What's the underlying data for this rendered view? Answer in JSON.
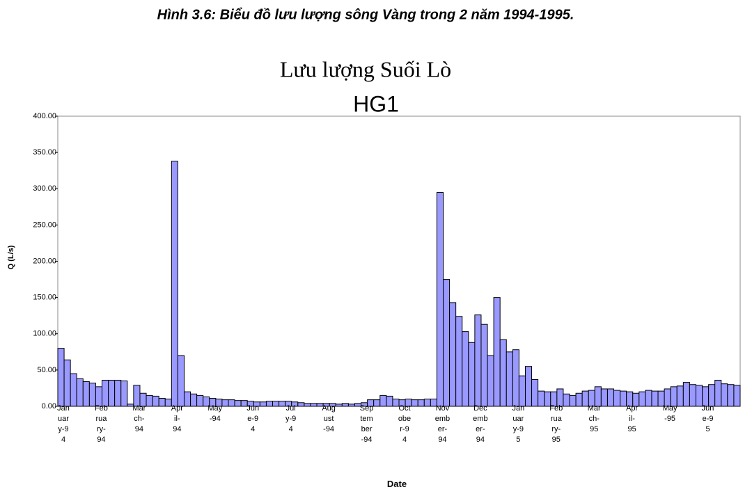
{
  "caption": "Hình 3.6: Biểu đồ lưu lượng sông Vàng trong 2 năm 1994-1995.",
  "chart_data": {
    "type": "bar",
    "title": "Lưu lượng Suối Lò",
    "subtitle": "HG1",
    "y_label": "Q (L/s)",
    "x_label": "Date",
    "color": "#9999ff",
    "edge_color": "#000000",
    "categories": [
      "January-94",
      "February-94",
      "March-94",
      "April-94",
      "May-94",
      "June-94",
      "July-94",
      "August-94",
      "September-94",
      "October-94",
      "November-94",
      "December-94",
      "January-95",
      "February-95",
      "March-95",
      "April-95",
      "May-95",
      "June-95"
    ],
    "values": [
      [
        80,
        64,
        45,
        38,
        34,
        32
      ],
      [
        27,
        36,
        36,
        36,
        35,
        3
      ],
      [
        29,
        18,
        15,
        14,
        11,
        10
      ],
      [
        338,
        70,
        20,
        17,
        15,
        13
      ],
      [
        11,
        10,
        9,
        9,
        8,
        8
      ],
      [
        7,
        6,
        6,
        7,
        7,
        7
      ],
      [
        7,
        6,
        5,
        4,
        4,
        4
      ],
      [
        4,
        4,
        3,
        4,
        3,
        4
      ],
      [
        5,
        9,
        9,
        15,
        14,
        10
      ],
      [
        9,
        10,
        9,
        9,
        10,
        10
      ],
      [
        295,
        175,
        143,
        124,
        103,
        88
      ],
      [
        126,
        113,
        70,
        150,
        92,
        75
      ],
      [
        78,
        42,
        55,
        37,
        21,
        20
      ],
      [
        20,
        24,
        17,
        15,
        18,
        21
      ],
      [
        22,
        27,
        24,
        24,
        22,
        21
      ],
      [
        20,
        18,
        20,
        22,
        21,
        21
      ],
      [
        24,
        27,
        28,
        33,
        30,
        29
      ],
      [
        27,
        30,
        36,
        31,
        30,
        29
      ]
    ],
    "ylim": [
      0,
      400
    ],
    "yticks": [
      {
        "value": 0,
        "label": "0.00"
      },
      {
        "value": 50,
        "label": "50.00"
      },
      {
        "value": 100,
        "label": "100.00"
      },
      {
        "value": 150,
        "label": "150.00"
      },
      {
        "value": 200,
        "label": "200.00"
      },
      {
        "value": 250,
        "label": "250.00"
      },
      {
        "value": 300,
        "label": "300.00"
      },
      {
        "value": 350,
        "label": "350.00"
      },
      {
        "value": 400,
        "label": "400.00"
      }
    ]
  }
}
